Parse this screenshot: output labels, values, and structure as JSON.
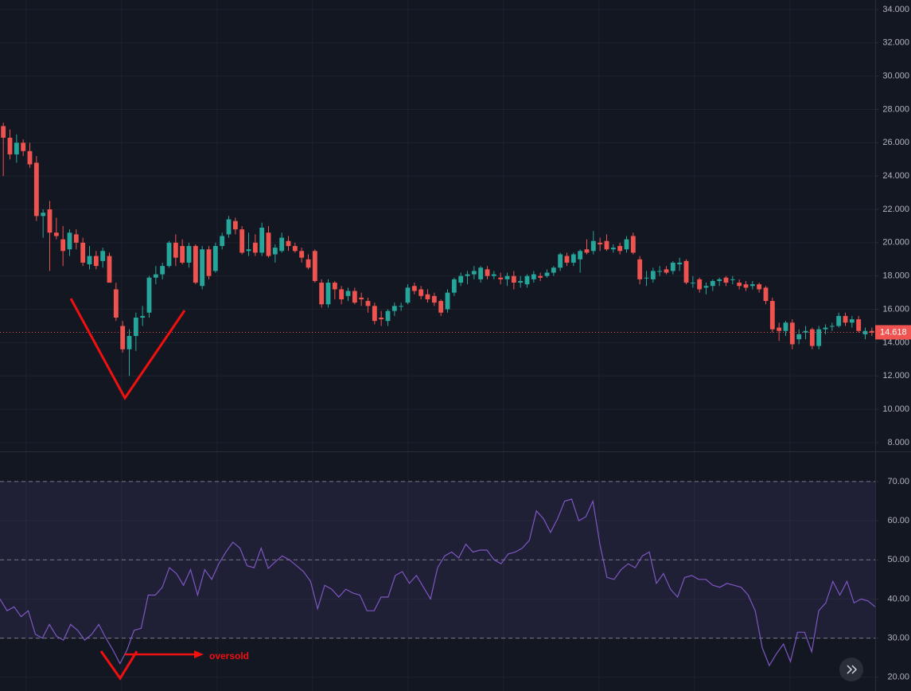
{
  "chart_data": [
    {
      "type": "candlestick",
      "up_color": "#26a69a",
      "down_color": "#ef5350",
      "grid": true,
      "ylim": [
        7.47,
        34.57
      ],
      "yticks": [
        {
          "value": 8,
          "label": "8.000"
        },
        {
          "value": 10,
          "label": "10.000"
        },
        {
          "value": 12,
          "label": "12.000"
        },
        {
          "value": 14,
          "label": "14.000"
        },
        {
          "value": 16,
          "label": "16.000"
        },
        {
          "value": 18,
          "label": "18.000"
        },
        {
          "value": 20,
          "label": "20.000"
        },
        {
          "value": 22,
          "label": "22.000"
        },
        {
          "value": 24,
          "label": "24.000"
        },
        {
          "value": 26,
          "label": "26.000"
        },
        {
          "value": 28,
          "label": "28.000"
        },
        {
          "value": 30,
          "label": "30.000"
        },
        {
          "value": 32,
          "label": "32.000"
        },
        {
          "value": 34,
          "label": "34.000"
        }
      ],
      "last_price": 14.618,
      "ohlc": [
        [
          27,
          27.2,
          24,
          26.3
        ],
        [
          26.3,
          26.8,
          25,
          25.3
        ],
        [
          25.3,
          26.5,
          24.8,
          26
        ],
        [
          26,
          26.2,
          25.2,
          25.5
        ],
        [
          25.5,
          26,
          24.5,
          24.7
        ],
        [
          24.8,
          25.2,
          21.3,
          21.6
        ],
        [
          21.6,
          22,
          20.3,
          21.8
        ],
        [
          22,
          22.5,
          18.3,
          20.6
        ],
        [
          20.6,
          21.5,
          20.2,
          20.4
        ],
        [
          20.2,
          21,
          18.6,
          19.5
        ],
        [
          19.6,
          20.8,
          19.2,
          20.6
        ],
        [
          20.5,
          20.8,
          19.6,
          20
        ],
        [
          20,
          20.3,
          18.6,
          18.8
        ],
        [
          18.7,
          19.8,
          18.4,
          19.2
        ],
        [
          19.2,
          19.5,
          18.4,
          18.6
        ],
        [
          18.9,
          19.7,
          18.5,
          19.5
        ],
        [
          19.2,
          19.4,
          17.6,
          17.6
        ],
        [
          17.2,
          17.6,
          15.3,
          15.5
        ],
        [
          15,
          15.3,
          13.4,
          13.6
        ],
        [
          13.6,
          14.8,
          12,
          14.4
        ],
        [
          14.4,
          15.8,
          13.5,
          15.5
        ],
        [
          15.5,
          16.2,
          15,
          15.6
        ],
        [
          15.8,
          18,
          15.5,
          17.9
        ],
        [
          17.9,
          18.6,
          17.5,
          18.1
        ],
        [
          18.1,
          18.8,
          17.8,
          18.6
        ],
        [
          18.6,
          20.1,
          18.5,
          20
        ],
        [
          20,
          20.5,
          18.6,
          19.1
        ],
        [
          19.8,
          20.2,
          18.7,
          18.8
        ],
        [
          18.8,
          20,
          18.5,
          19.8
        ],
        [
          19.8,
          19.9,
          17.5,
          17.6
        ],
        [
          17.4,
          19.8,
          17.2,
          19.6
        ],
        [
          19.6,
          19.8,
          17.8,
          18
        ],
        [
          18.3,
          20,
          18.2,
          19.8
        ],
        [
          19.8,
          20.6,
          19.6,
          20.4
        ],
        [
          20.5,
          21.6,
          20.3,
          21.4
        ],
        [
          21.3,
          21.5,
          20.5,
          20.8
        ],
        [
          20.8,
          21,
          19.3,
          19.4
        ],
        [
          19.5,
          20.6,
          19.2,
          19.6
        ],
        [
          20,
          20.5,
          19.2,
          19.4
        ],
        [
          19.4,
          21.2,
          19.2,
          20.9
        ],
        [
          20.6,
          21,
          19.1,
          19.2
        ],
        [
          19.3,
          19.9,
          18.8,
          19.7
        ],
        [
          19.5,
          20.6,
          19.4,
          20.3
        ],
        [
          20.1,
          20.4,
          19.5,
          19.8
        ],
        [
          19.8,
          20,
          19.4,
          19.5
        ],
        [
          19.5,
          19.7,
          18.8,
          19.1
        ],
        [
          19,
          19.3,
          18.4,
          18.5
        ],
        [
          19.5,
          19.6,
          17.6,
          17.7
        ],
        [
          17.6,
          17.8,
          16.1,
          16.3
        ],
        [
          16.3,
          17.8,
          16.1,
          17.6
        ],
        [
          17.6,
          17.7,
          16.6,
          17.2
        ],
        [
          17.2,
          17.4,
          16.3,
          16.6
        ],
        [
          16.8,
          17.3,
          16.5,
          17.1
        ],
        [
          17.1,
          17.3,
          16.3,
          16.4
        ],
        [
          16.7,
          17,
          16.2,
          16.6
        ],
        [
          16.5,
          16.7,
          15.8,
          16.2
        ],
        [
          16.2,
          16.4,
          15.1,
          15.3
        ],
        [
          15.5,
          15.9,
          15,
          15.4
        ],
        [
          15.3,
          16,
          15,
          15.9
        ],
        [
          15.9,
          16.4,
          15.6,
          16.2
        ],
        [
          16.2,
          16.4,
          15.9,
          16.2
        ],
        [
          16.4,
          17.5,
          16.3,
          17.3
        ],
        [
          17.4,
          17.6,
          16.9,
          17.1
        ],
        [
          17.2,
          17.4,
          16.6,
          16.8
        ],
        [
          16.9,
          17.2,
          16.4,
          16.6
        ],
        [
          16.8,
          17,
          16.2,
          16.4
        ],
        [
          16.5,
          16.6,
          15.6,
          15.8
        ],
        [
          16,
          17.2,
          15.8,
          17
        ],
        [
          17,
          17.9,
          16.8,
          17.8
        ],
        [
          17.6,
          18.2,
          17.4,
          18
        ],
        [
          18,
          18.3,
          17.5,
          18.1
        ],
        [
          18.1,
          18.6,
          17.8,
          18.3
        ],
        [
          17.8,
          18.6,
          17.6,
          18.5
        ],
        [
          18.4,
          18.6,
          17.8,
          18
        ],
        [
          18,
          18.3,
          17.8,
          18.1
        ],
        [
          17.9,
          18.2,
          17.5,
          17.8
        ],
        [
          17.8,
          18.2,
          17.4,
          18
        ],
        [
          18,
          18.3,
          17.2,
          17.6
        ],
        [
          17.6,
          18,
          17.3,
          17.7
        ],
        [
          17.5,
          18.1,
          17.3,
          18
        ],
        [
          17.8,
          18.3,
          17.6,
          18.1
        ],
        [
          18,
          18.2,
          17.7,
          17.9
        ],
        [
          18,
          18.4,
          17.9,
          18.2
        ],
        [
          18.2,
          18.6,
          18,
          18.5
        ],
        [
          18.5,
          19.4,
          18.3,
          19.3
        ],
        [
          19.2,
          19.4,
          18.6,
          18.8
        ],
        [
          18.8,
          19.4,
          18.6,
          19.3
        ],
        [
          19,
          19.6,
          18.2,
          19.5
        ],
        [
          19.6,
          20.2,
          19.3,
          19.4
        ],
        [
          19.5,
          20.7,
          19.3,
          20.1
        ],
        [
          20,
          20.3,
          19.5,
          19.9
        ],
        [
          20.1,
          20.5,
          19.5,
          19.6
        ],
        [
          19.6,
          19.9,
          19.4,
          19.7
        ],
        [
          19.8,
          20,
          19.3,
          19.5
        ],
        [
          19.6,
          20.4,
          19.4,
          20.2
        ],
        [
          20.4,
          20.6,
          19.3,
          19.4
        ],
        [
          19,
          19.2,
          17.5,
          17.8
        ],
        [
          17.9,
          18.3,
          17.4,
          17.9
        ],
        [
          17.8,
          18.5,
          17.6,
          18.3
        ],
        [
          18.3,
          18.6,
          18,
          18.3
        ],
        [
          18.4,
          18.6,
          18.1,
          18.2
        ],
        [
          18.3,
          18.9,
          18.1,
          18.8
        ],
        [
          18.7,
          19.1,
          18.3,
          18.8
        ],
        [
          18.9,
          19,
          17.5,
          17.6
        ],
        [
          17.6,
          18,
          17.3,
          17.6
        ],
        [
          17.8,
          17.9,
          17,
          17.2
        ],
        [
          17.3,
          17.6,
          16.9,
          17.4
        ],
        [
          17.4,
          17.8,
          17.1,
          17.7
        ],
        [
          17.7,
          17.9,
          17.4,
          17.8
        ],
        [
          17.9,
          18,
          17.4,
          17.6
        ],
        [
          17.8,
          18,
          17.5,
          17.8
        ],
        [
          17.6,
          17.8,
          17.2,
          17.4
        ],
        [
          17.5,
          17.7,
          17.1,
          17.3
        ],
        [
          17.4,
          17.7,
          17.2,
          17.5
        ],
        [
          17.5,
          17.6,
          17,
          17.2
        ],
        [
          17.3,
          17.4,
          16.3,
          16.5
        ],
        [
          16.5,
          16.7,
          14.6,
          14.8
        ],
        [
          14.9,
          15.2,
          14.1,
          14.7
        ],
        [
          14.7,
          15.3,
          14.4,
          15.2
        ],
        [
          15.2,
          15.4,
          13.6,
          13.9
        ],
        [
          14.2,
          14.8,
          13.9,
          14.5
        ],
        [
          14.6,
          15,
          14.2,
          14.7
        ],
        [
          14.8,
          14.9,
          13.6,
          13.8
        ],
        [
          13.8,
          15,
          13.6,
          14.8
        ],
        [
          14.8,
          15.1,
          14.5,
          14.9
        ],
        [
          15,
          15.2,
          14.7,
          15
        ],
        [
          15,
          15.8,
          14.9,
          15.6
        ],
        [
          15.6,
          15.8,
          15,
          15.2
        ],
        [
          15.2,
          15.6,
          14.9,
          15.4
        ],
        [
          15.4,
          15.6,
          14.6,
          14.7
        ],
        [
          14.5,
          14.9,
          14.2,
          14.7
        ],
        [
          14.7,
          14.9,
          14.4,
          14.6
        ]
      ]
    },
    {
      "type": "line",
      "color": "#7e57c2",
      "band": [
        30,
        70
      ],
      "band_color": "#7e57c2",
      "levels": [
        30,
        50,
        70
      ],
      "ylim": [
        16.5,
        77.5
      ],
      "yticks": [
        {
          "value": 20,
          "label": "20.00"
        },
        {
          "value": 30,
          "label": "30.00"
        },
        {
          "value": 40,
          "label": "40.00"
        },
        {
          "value": 50,
          "label": "50.00"
        },
        {
          "value": 60,
          "label": "60.00"
        },
        {
          "value": 70,
          "label": "70.00"
        }
      ],
      "annotation": "oversold",
      "values": [
        40,
        37,
        38,
        35.5,
        37,
        31,
        30,
        33.5,
        30.5,
        29.5,
        33.5,
        32,
        29.5,
        31,
        33.5,
        30,
        27,
        23.5,
        27,
        32,
        32.5,
        41,
        41,
        43,
        48,
        46.5,
        43.5,
        47.5,
        41,
        47.5,
        45,
        49,
        52,
        54.5,
        53,
        48.5,
        48,
        53,
        47.8,
        49.5,
        51,
        50,
        48.5,
        47,
        44.5,
        37.5,
        43.5,
        42.5,
        40.5,
        42.5,
        41.5,
        41,
        37,
        37,
        40.5,
        40.5,
        46,
        47,
        44,
        46,
        43,
        40,
        48,
        51,
        52,
        50.5,
        54,
        52,
        52.5,
        52.5,
        50,
        49,
        51.5,
        52,
        53,
        55,
        62.5,
        60.5,
        57,
        60.5,
        65,
        65.5,
        60,
        61,
        65,
        54,
        45.5,
        45,
        47.5,
        49,
        48,
        51,
        52,
        44,
        46.5,
        42.5,
        40.5,
        45.5,
        46,
        45,
        45,
        43.5,
        43,
        44,
        43.5,
        43,
        41,
        37,
        27.5,
        23,
        26,
        28.5,
        24,
        31.5,
        31.5,
        26.5,
        37,
        39,
        44.5,
        41,
        44.5,
        39,
        40,
        39.5,
        38
      ]
    }
  ]
}
